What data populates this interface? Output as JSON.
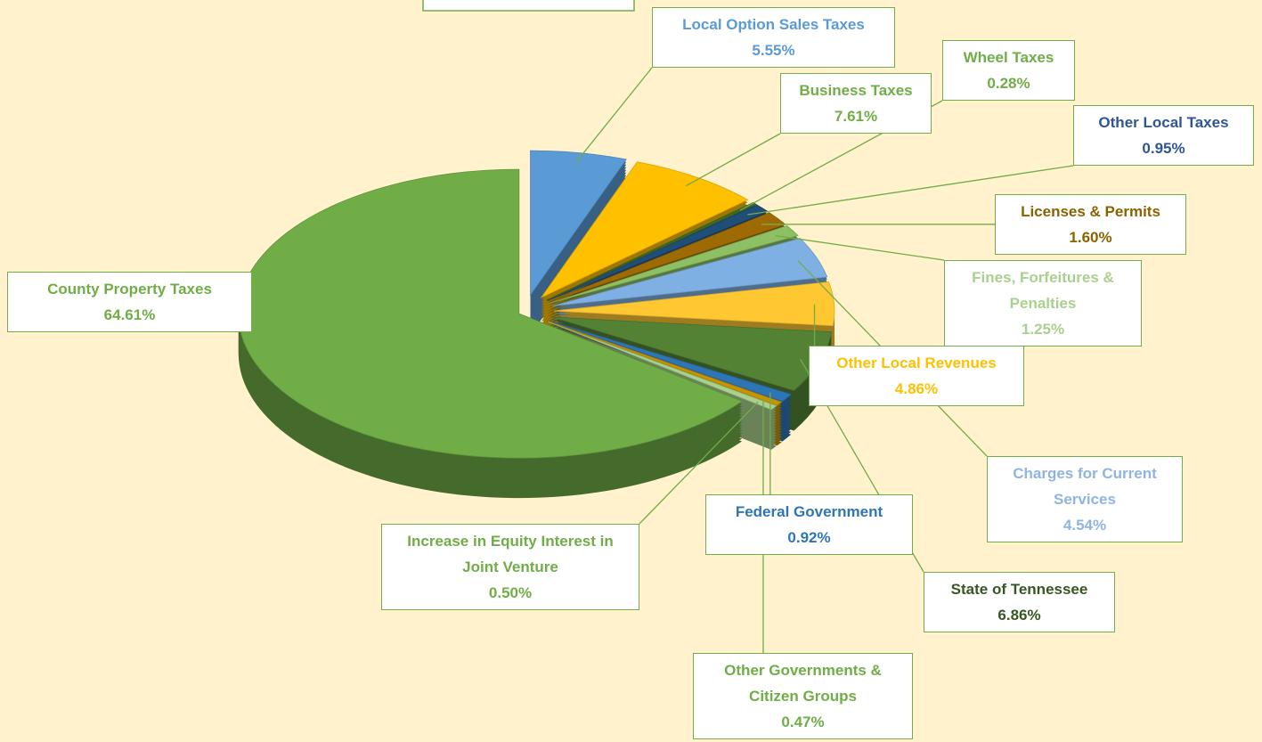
{
  "chart_data": {
    "type": "pie",
    "categories": [
      "Local Option Sales Taxes",
      "Business Taxes",
      "Wheel Taxes",
      "Other Local Taxes",
      "Licenses & Permits",
      "Fines, Forfeitures & Penalties",
      "Charges for Current Services",
      "Other Local Revenues",
      "State of Tennessee",
      "Federal Government",
      "Other Governments & Citizen Groups",
      "Increase in Equity Interest in Joint Venture",
      "County Property Taxes"
    ],
    "values": [
      5.55,
      7.61,
      0.28,
      0.95,
      1.6,
      1.25,
      4.54,
      4.86,
      6.86,
      0.92,
      0.47,
      0.5,
      64.61
    ],
    "value_labels": [
      "5.55%",
      "7.61%",
      "0.28%",
      "0.95%",
      "1.60%",
      "1.25%",
      "4.54%",
      "4.86%",
      "6.86%",
      "0.92%",
      "0.47%",
      "0.50%",
      "64.61%"
    ],
    "colors": [
      "#5b9bd5",
      "#ffc000",
      "#3d6b26",
      "#1f4e79",
      "#9e6a03",
      "#8cc063",
      "#7fb0e3",
      "#ffc832",
      "#548235",
      "#2e75b6",
      "#c59400",
      "#a9d18e",
      "#70ad47"
    ],
    "label_colors": [
      "#5b9bd5",
      "#70ad47",
      "#70ad47",
      "#2f5597",
      "#8a6200",
      "#a9d18e",
      "#8fb4e3",
      "#ffc000",
      "#375623",
      "#2e75b6",
      "#70ad47",
      "#70ad47",
      "#70ad47"
    ]
  }
}
